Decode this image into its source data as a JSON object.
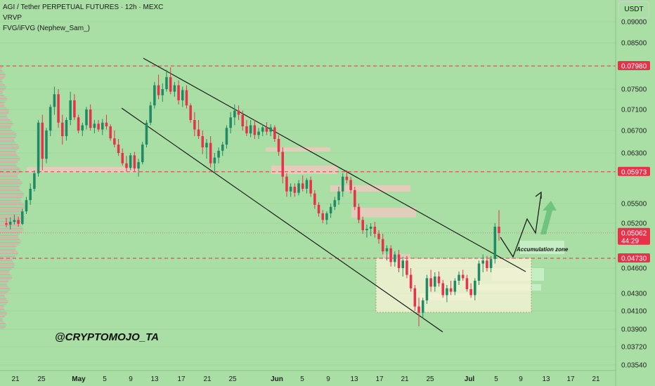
{
  "header": {
    "title": "AGI / Tether PERPETUAL FUTURES · 12h · MEXC",
    "indicator1": "VRVP",
    "indicator2": "FVG/iFVG (Nephew_Sam_)"
  },
  "currency_button": "USDT",
  "watermark": "@CRYPTOMOJO_TA",
  "annotation": "Accumulation zone",
  "colors": {
    "background": "#a9dfa5",
    "up": "#1f8a63",
    "down": "#e8324b",
    "resistance_line": "#e8324b",
    "current_price_line": "#e36b7b",
    "price_tag_bg": "#e8324b",
    "zone_fill": "#fbf3d8",
    "fvg_bear": "#f4c7c2",
    "fvg_bull": "#c9f0c8"
  },
  "chart_data": {
    "type": "candlestick",
    "title": "AGI / Tether PERPETUAL FUTURES · 12h · MEXC",
    "y_axis_labels": [
      "0.09000",
      "0.08500",
      "0.07980",
      "0.07500",
      "0.07100",
      "0.06700",
      "0.06300",
      "0.05973",
      "0.05500",
      "0.05200",
      "0.05062",
      "0.04730",
      "0.04600",
      "0.04300",
      "0.04100",
      "0.03900",
      "0.03720",
      "0.03540"
    ],
    "price_tags": [
      {
        "value": "0.07980",
        "style": "red"
      },
      {
        "value": "0.05973",
        "style": "red"
      },
      {
        "value": "0.05062",
        "style": "current",
        "countdown": "44:29"
      },
      {
        "value": "0.04730",
        "style": "red"
      }
    ],
    "x_axis_labels": [
      "21",
      "25",
      "May",
      "5",
      "9",
      "13",
      "17",
      "21",
      "25",
      "Jun",
      "5",
      "9",
      "13",
      "17",
      "21",
      "25",
      "Jul",
      "5",
      "9",
      "13",
      "17",
      "21"
    ],
    "x_axis_bold": [
      "May",
      "Jun",
      "Jul"
    ],
    "horizontal_levels": [
      0.0798,
      0.05973,
      0.0473
    ],
    "current_price": 0.05062,
    "candles": [
      [
        0.052,
        0.0528,
        0.0514,
        0.0518
      ],
      [
        0.0518,
        0.0529,
        0.0511,
        0.0522
      ],
      [
        0.0522,
        0.0533,
        0.0518,
        0.0525
      ],
      [
        0.0525,
        0.053,
        0.0515,
        0.0519
      ],
      [
        0.0519,
        0.0542,
        0.0517,
        0.0538
      ],
      [
        0.0538,
        0.056,
        0.0534,
        0.0555
      ],
      [
        0.0555,
        0.058,
        0.0548,
        0.0572
      ],
      [
        0.0572,
        0.06,
        0.0568,
        0.0595
      ],
      [
        0.0595,
        0.069,
        0.059,
        0.0685
      ],
      [
        0.0685,
        0.07,
        0.06,
        0.062
      ],
      [
        0.062,
        0.0675,
        0.0612,
        0.067
      ],
      [
        0.067,
        0.072,
        0.066,
        0.0715
      ],
      [
        0.0715,
        0.0755,
        0.07,
        0.074
      ],
      [
        0.074,
        0.075,
        0.0675,
        0.0685
      ],
      [
        0.0685,
        0.07,
        0.0645,
        0.066
      ],
      [
        0.066,
        0.0695,
        0.0652,
        0.069
      ],
      [
        0.069,
        0.0745,
        0.068,
        0.0728
      ],
      [
        0.0728,
        0.074,
        0.069,
        0.0695
      ],
      [
        0.0695,
        0.07,
        0.0665,
        0.067
      ],
      [
        0.067,
        0.0685,
        0.066,
        0.068
      ],
      [
        0.068,
        0.0715,
        0.0672,
        0.071
      ],
      [
        0.071,
        0.072,
        0.067,
        0.0675
      ],
      [
        0.0675,
        0.069,
        0.0665,
        0.0683
      ],
      [
        0.0683,
        0.069,
        0.0668,
        0.0672
      ],
      [
        0.0672,
        0.0692,
        0.0662,
        0.0685
      ],
      [
        0.0685,
        0.07,
        0.0672,
        0.0678
      ],
      [
        0.0678,
        0.0682,
        0.0652,
        0.0656
      ],
      [
        0.0656,
        0.067,
        0.064,
        0.0645
      ],
      [
        0.0645,
        0.0655,
        0.0625,
        0.063
      ],
      [
        0.063,
        0.0638,
        0.0608,
        0.0612
      ],
      [
        0.0612,
        0.0625,
        0.0598,
        0.0604
      ],
      [
        0.0604,
        0.063,
        0.06,
        0.0626
      ],
      [
        0.0626,
        0.0632,
        0.0598,
        0.0603
      ],
      [
        0.0603,
        0.062,
        0.059,
        0.0614
      ],
      [
        0.0614,
        0.065,
        0.061,
        0.0645
      ],
      [
        0.0645,
        0.069,
        0.064,
        0.0685
      ],
      [
        0.0685,
        0.0725,
        0.068,
        0.0718
      ],
      [
        0.0718,
        0.0765,
        0.0712,
        0.0758
      ],
      [
        0.0758,
        0.078,
        0.073,
        0.0738
      ],
      [
        0.0738,
        0.0762,
        0.0725,
        0.075
      ],
      [
        0.075,
        0.079,
        0.0745,
        0.0775
      ],
      [
        0.0775,
        0.0795,
        0.074,
        0.0745
      ],
      [
        0.0745,
        0.0765,
        0.0735,
        0.0758
      ],
      [
        0.0758,
        0.0768,
        0.072,
        0.0728
      ],
      [
        0.0728,
        0.0755,
        0.0715,
        0.0748
      ],
      [
        0.0748,
        0.0758,
        0.0712,
        0.0718
      ],
      [
        0.0718,
        0.0722,
        0.0685,
        0.069
      ],
      [
        0.069,
        0.0705,
        0.066,
        0.0672
      ],
      [
        0.0672,
        0.069,
        0.0655,
        0.066
      ],
      [
        0.066,
        0.067,
        0.0628,
        0.064
      ],
      [
        0.064,
        0.0655,
        0.062,
        0.0648
      ],
      [
        0.0648,
        0.066,
        0.0605,
        0.0612
      ],
      [
        0.0612,
        0.063,
        0.0595,
        0.0622
      ],
      [
        0.0622,
        0.064,
        0.0612,
        0.0634
      ],
      [
        0.0634,
        0.065,
        0.0625,
        0.0645
      ],
      [
        0.0645,
        0.068,
        0.0638,
        0.0675
      ],
      [
        0.0675,
        0.0705,
        0.0665,
        0.0695
      ],
      [
        0.0695,
        0.072,
        0.068,
        0.0708
      ],
      [
        0.0708,
        0.0718,
        0.069,
        0.07
      ],
      [
        0.07,
        0.0708,
        0.067,
        0.0678
      ],
      [
        0.0678,
        0.069,
        0.066,
        0.0665
      ],
      [
        0.0665,
        0.069,
        0.0658,
        0.068
      ],
      [
        0.068,
        0.069,
        0.0655,
        0.0662
      ],
      [
        0.0662,
        0.0675,
        0.0655,
        0.0668
      ],
      [
        0.0668,
        0.0682,
        0.066,
        0.0676
      ],
      [
        0.0676,
        0.0686,
        0.0662,
        0.0668
      ],
      [
        0.0668,
        0.0682,
        0.066,
        0.0676
      ],
      [
        0.0676,
        0.068,
        0.065,
        0.0655
      ],
      [
        0.0655,
        0.0662,
        0.0625,
        0.0632
      ],
      [
        0.0632,
        0.064,
        0.058,
        0.059
      ],
      [
        0.059,
        0.0595,
        0.056,
        0.0568
      ],
      [
        0.0568,
        0.058,
        0.056,
        0.0575
      ],
      [
        0.0575,
        0.058,
        0.056,
        0.0566
      ],
      [
        0.0566,
        0.0585,
        0.0562,
        0.058
      ],
      [
        0.058,
        0.0592,
        0.0568,
        0.0572
      ],
      [
        0.0572,
        0.0588,
        0.0565,
        0.0585
      ],
      [
        0.0585,
        0.059,
        0.056,
        0.0565
      ],
      [
        0.0565,
        0.057,
        0.0542,
        0.0548
      ],
      [
        0.0548,
        0.0552,
        0.053,
        0.0535
      ],
      [
        0.0535,
        0.054,
        0.052,
        0.0525
      ],
      [
        0.0525,
        0.0538,
        0.0518,
        0.0535
      ],
      [
        0.0535,
        0.055,
        0.0528,
        0.0545
      ],
      [
        0.0545,
        0.056,
        0.054,
        0.0555
      ],
      [
        0.0555,
        0.0575,
        0.0548,
        0.0568
      ],
      [
        0.0568,
        0.0595,
        0.056,
        0.059
      ],
      [
        0.059,
        0.06,
        0.058,
        0.0585
      ],
      [
        0.0585,
        0.059,
        0.0565,
        0.057
      ],
      [
        0.057,
        0.0575,
        0.054,
        0.0545
      ],
      [
        0.0545,
        0.055,
        0.052,
        0.0525
      ],
      [
        0.0525,
        0.053,
        0.0505,
        0.051
      ],
      [
        0.051,
        0.0518,
        0.05,
        0.0512
      ],
      [
        0.0512,
        0.052,
        0.0502,
        0.0515
      ],
      [
        0.0515,
        0.0522,
        0.05,
        0.0505
      ],
      [
        0.0505,
        0.051,
        0.0492,
        0.0498
      ],
      [
        0.0498,
        0.0505,
        0.0478,
        0.0482
      ],
      [
        0.0482,
        0.049,
        0.047,
        0.0486
      ],
      [
        0.0486,
        0.049,
        0.0462,
        0.0468
      ],
      [
        0.0468,
        0.0482,
        0.0462,
        0.0478
      ],
      [
        0.0478,
        0.0484,
        0.0455,
        0.046
      ],
      [
        0.046,
        0.0475,
        0.045,
        0.047
      ],
      [
        0.047,
        0.0476,
        0.0448,
        0.0452
      ],
      [
        0.0452,
        0.046,
        0.0432,
        0.0436
      ],
      [
        0.0436,
        0.044,
        0.041,
        0.0415
      ],
      [
        0.0415,
        0.0425,
        0.0393,
        0.0408
      ],
      [
        0.0408,
        0.0425,
        0.0402,
        0.0422
      ],
      [
        0.0422,
        0.0452,
        0.0418,
        0.0448
      ],
      [
        0.0448,
        0.0458,
        0.0432,
        0.0438
      ],
      [
        0.0438,
        0.0455,
        0.0432,
        0.045
      ],
      [
        0.045,
        0.0456,
        0.0438,
        0.0442
      ],
      [
        0.0442,
        0.0446,
        0.0425,
        0.0428
      ],
      [
        0.0428,
        0.044,
        0.042,
        0.0436
      ],
      [
        0.0436,
        0.0445,
        0.0428,
        0.0432
      ],
      [
        0.0432,
        0.0448,
        0.0428,
        0.0445
      ],
      [
        0.0445,
        0.0456,
        0.044,
        0.0452
      ],
      [
        0.0452,
        0.0458,
        0.0445,
        0.0448
      ],
      [
        0.0448,
        0.0452,
        0.0432,
        0.0435
      ],
      [
        0.0435,
        0.0442,
        0.0425,
        0.0428
      ],
      [
        0.0428,
        0.0448,
        0.0422,
        0.0445
      ],
      [
        0.0445,
        0.047,
        0.044,
        0.0466
      ],
      [
        0.0466,
        0.0478,
        0.0455,
        0.047
      ],
      [
        0.047,
        0.0476,
        0.0456,
        0.046
      ],
      [
        0.046,
        0.0476,
        0.0455,
        0.0472
      ],
      [
        0.0472,
        0.052,
        0.0466,
        0.0515
      ],
      [
        0.0515,
        0.054,
        0.0496,
        0.0506
      ]
    ]
  }
}
